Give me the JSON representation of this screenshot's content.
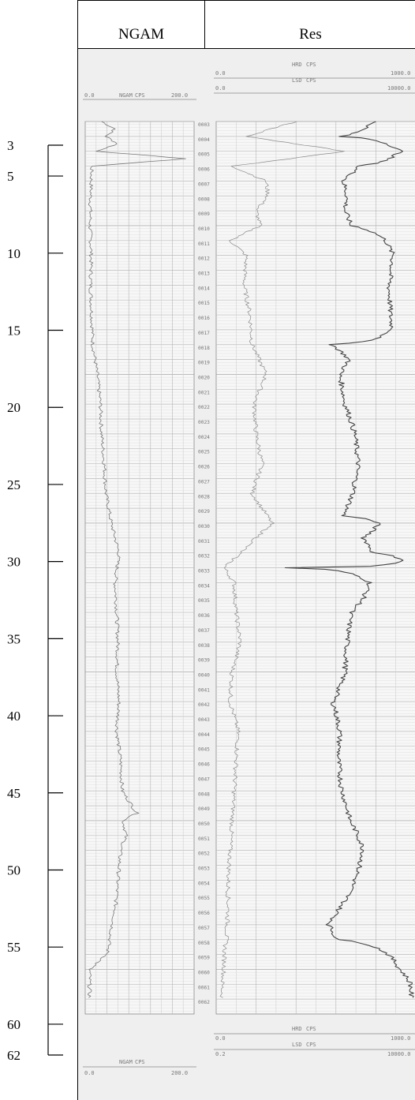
{
  "headers": {
    "left": "NGAM",
    "right": "Res"
  },
  "track_headers": {
    "ngam_top": {
      "min": "0.0",
      "name": "NGAM",
      "unit": "CPS",
      "max": "200.0"
    },
    "ngam_bottom": {
      "min": "0.0",
      "name": "NGAM",
      "unit": "CPS",
      "max": "200.0"
    },
    "res_top_hrd": {
      "min": "0.0",
      "name": "HRD",
      "unit": "CPS",
      "max": "1000.0"
    },
    "res_top_lsd": {
      "min": "0.0",
      "name": "LSD",
      "unit": "CPS",
      "max": "10000.0"
    },
    "res_bottom_hrd": {
      "min": "0.0",
      "name": "HRD",
      "unit": "CPS",
      "max": "1000.0"
    },
    "res_bottom_lsd": {
      "min": "0.2",
      "name": "LSD",
      "unit": "CPS",
      "max": "10000.0"
    }
  },
  "chart_data": {
    "type": "line",
    "title": "",
    "depth_axis": {
      "ticks": [
        3,
        5,
        10,
        15,
        20,
        25,
        30,
        35,
        40,
        45,
        50,
        55,
        60,
        62
      ],
      "range": [
        3,
        62
      ]
    },
    "depth_labels": [
      "0003",
      "0004",
      "0005",
      "0006",
      "0007",
      "0008",
      "0009",
      "0010",
      "0011",
      "0012",
      "0013",
      "0014",
      "0015",
      "0016",
      "0017",
      "0018",
      "0019",
      "0020",
      "0021",
      "0022",
      "0023",
      "0024",
      "0025",
      "0026",
      "0027",
      "0028",
      "0029",
      "0030",
      "0031",
      "0032",
      "0033",
      "0034",
      "0035",
      "0036",
      "0037",
      "0038",
      "0039",
      "0040",
      "0041",
      "0042",
      "0043",
      "0044",
      "0045",
      "0046",
      "0047",
      "0048",
      "0049",
      "0050",
      "0051",
      "0052",
      "0053",
      "0054",
      "0055",
      "0056",
      "0057",
      "0058",
      "0059",
      "0060",
      "0061",
      "0062"
    ],
    "ngam": {
      "name": "NGAM",
      "unit": "CPS",
      "xlim": [
        0,
        200
      ],
      "depth": [
        3,
        3.5,
        4,
        4.5,
        5,
        5.5,
        6,
        8,
        10,
        12,
        14,
        16,
        18,
        20,
        22,
        24,
        26,
        28,
        30,
        32,
        34,
        36,
        38,
        40,
        42,
        44,
        46,
        48,
        49.5,
        50,
        51,
        52,
        54,
        56,
        58,
        59,
        60,
        61,
        62
      ],
      "values": [
        30,
        55,
        38,
        60,
        22,
        185,
        12,
        10,
        9,
        11,
        10,
        12,
        14,
        22,
        28,
        30,
        35,
        38,
        48,
        62,
        55,
        58,
        60,
        58,
        62,
        58,
        65,
        68,
        95,
        70,
        75,
        65,
        60,
        55,
        45,
        40,
        8,
        8,
        8
      ]
    },
    "hrd": {
      "name": "HRD",
      "unit": "CPS",
      "xlim": [
        0,
        1000
      ],
      "depth": [
        3,
        4,
        5,
        6,
        7,
        8,
        9,
        10,
        11,
        12,
        14,
        16,
        18,
        20,
        22,
        24,
        26,
        28,
        30,
        32,
        33,
        34,
        36,
        38,
        40,
        42,
        44,
        46,
        48,
        50,
        52,
        54,
        56,
        58,
        59,
        60,
        61,
        62
      ],
      "values": [
        400,
        150,
        650,
        80,
        250,
        260,
        200,
        220,
        70,
        150,
        140,
        170,
        180,
        250,
        190,
        200,
        230,
        180,
        280,
        120,
        40,
        90,
        100,
        120,
        80,
        70,
        110,
        100,
        90,
        80,
        70,
        60,
        60,
        50,
        40,
        40,
        30,
        30
      ]
    },
    "lsd": {
      "name": "LSD",
      "unit": "CPS",
      "xlim": [
        0,
        10000
      ],
      "scale": "log",
      "depth": [
        3,
        4,
        5,
        6,
        7,
        8,
        9,
        10,
        11,
        12,
        14,
        16,
        17,
        18,
        19,
        20,
        22,
        24,
        26,
        28,
        29.5,
        30,
        31,
        32,
        32.5,
        33,
        34,
        35,
        36,
        38,
        40,
        42,
        44,
        46,
        48,
        50,
        52,
        54,
        56,
        57,
        58,
        59,
        60,
        61,
        62
      ],
      "values": [
        1500,
        300,
        5000,
        700,
        350,
        420,
        380,
        500,
        2500,
        3500,
        2900,
        3100,
        3400,
        200,
        450,
        300,
        380,
        600,
        700,
        550,
        350,
        1800,
        900,
        1400,
        6000,
        25,
        1200,
        900,
        500,
        420,
        380,
        220,
        300,
        280,
        330,
        480,
        900,
        600,
        280,
        180,
        260,
        2800,
        4800,
        8000,
        8000
      ]
    }
  }
}
